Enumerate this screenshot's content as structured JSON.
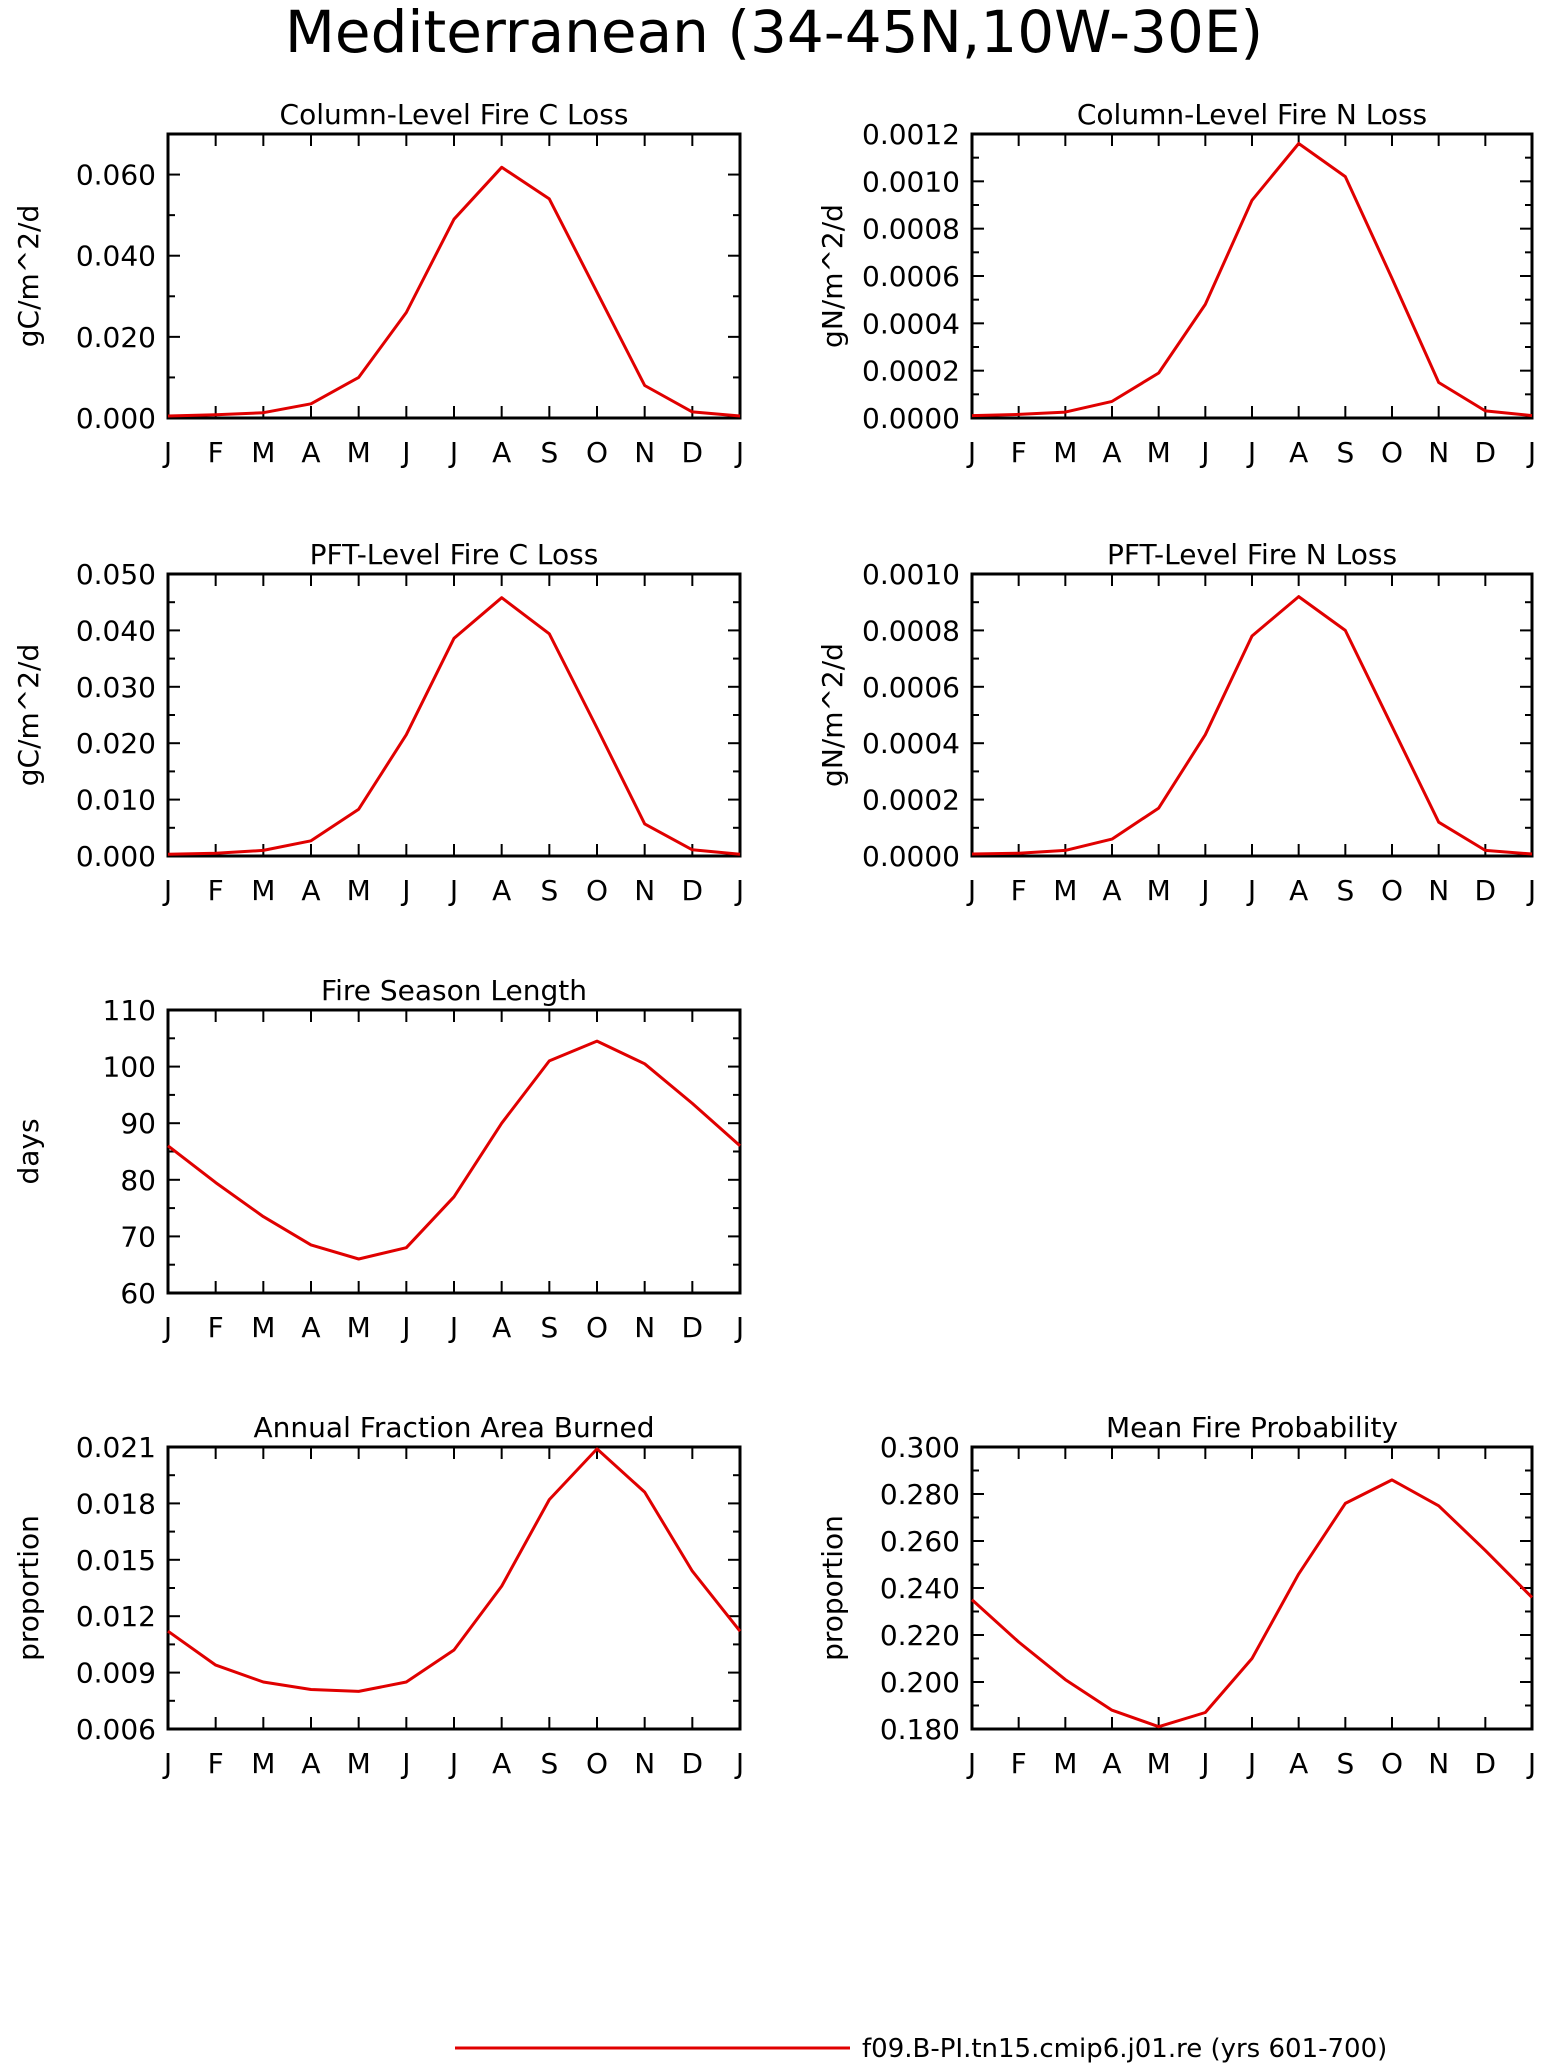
{
  "title": "Mediterranean (34-45N,10W-30E)",
  "legend": {
    "label": "f09.B-PI.tn15.cmip6.j01.re (yrs 601-700)",
    "color": "#e00000"
  },
  "chart_data": [
    {
      "type": "line",
      "title": "Column-Level Fire C Loss",
      "ylabel": "gC/m^2/d",
      "categories": [
        "J",
        "F",
        "M",
        "A",
        "M",
        "J",
        "J",
        "A",
        "S",
        "O",
        "N",
        "D",
        "J"
      ],
      "yticks": [
        "0.000",
        "0.020",
        "0.040",
        "0.060"
      ],
      "ylim": [
        0,
        0.07
      ],
      "series": [
        {
          "values": [
            0.0005,
            0.0008,
            0.0013,
            0.0035,
            0.01,
            0.026,
            0.049,
            0.0618,
            0.054,
            0.031,
            0.008,
            0.0015,
            0.0005
          ]
        }
      ]
    },
    {
      "type": "line",
      "title": "Column-Level Fire N Loss",
      "ylabel": "gN/m^2/d",
      "categories": [
        "J",
        "F",
        "M",
        "A",
        "M",
        "J",
        "J",
        "A",
        "S",
        "O",
        "N",
        "D",
        "J"
      ],
      "yticks": [
        "0.0000",
        "0.0002",
        "0.0004",
        "0.0006",
        "0.0008",
        "0.0010",
        "0.0012"
      ],
      "ylim": [
        0,
        0.0012
      ],
      "series": [
        {
          "values": [
            1e-05,
            1.5e-05,
            2.5e-05,
            7e-05,
            0.00019,
            0.00048,
            0.00092,
            0.00116,
            0.00102,
            0.00059,
            0.00015,
            3e-05,
            1e-05
          ]
        }
      ]
    },
    {
      "type": "line",
      "title": "PFT-Level Fire C Loss",
      "ylabel": "gC/m^2/d",
      "categories": [
        "J",
        "F",
        "M",
        "A",
        "M",
        "J",
        "J",
        "A",
        "S",
        "O",
        "N",
        "D",
        "J"
      ],
      "yticks": [
        "0.000",
        "0.010",
        "0.020",
        "0.030",
        "0.040",
        "0.050"
      ],
      "ylim": [
        0,
        0.05
      ],
      "series": [
        {
          "values": [
            0.0003,
            0.0005,
            0.001,
            0.0027,
            0.0083,
            0.0215,
            0.0386,
            0.0458,
            0.0394,
            0.0227,
            0.0057,
            0.0011,
            0.0003
          ]
        }
      ]
    },
    {
      "type": "line",
      "title": "PFT-Level Fire N Loss",
      "ylabel": "gN/m^2/d",
      "categories": [
        "J",
        "F",
        "M",
        "A",
        "M",
        "J",
        "J",
        "A",
        "S",
        "O",
        "N",
        "D",
        "J"
      ],
      "yticks": [
        "0.0000",
        "0.0002",
        "0.0004",
        "0.0006",
        "0.0008",
        "0.0010"
      ],
      "ylim": [
        0,
        0.001
      ],
      "series": [
        {
          "values": [
            7e-06,
            1e-05,
            2e-05,
            6e-05,
            0.00017,
            0.00043,
            0.00078,
            0.00092,
            0.0008,
            0.00046,
            0.00012,
            2e-05,
            7e-06
          ]
        }
      ]
    },
    {
      "type": "line",
      "title": "Fire Season Length",
      "ylabel": "days",
      "categories": [
        "J",
        "F",
        "M",
        "A",
        "M",
        "J",
        "J",
        "A",
        "S",
        "O",
        "N",
        "D",
        "J"
      ],
      "yticks": [
        "60",
        "70",
        "80",
        "90",
        "100",
        "110"
      ],
      "ylim": [
        60,
        110
      ],
      "series": [
        {
          "values": [
            86,
            79.5,
            73.5,
            68.5,
            66,
            68,
            77,
            90,
            101,
            104.5,
            100.5,
            93.5,
            86
          ]
        }
      ]
    },
    {
      "type": "line",
      "title": "Annual Fraction Area Burned",
      "ylabel": "proportion",
      "categories": [
        "J",
        "F",
        "M",
        "A",
        "M",
        "J",
        "J",
        "A",
        "S",
        "O",
        "N",
        "D",
        "J"
      ],
      "yticks": [
        "0.006",
        "0.009",
        "0.012",
        "0.015",
        "0.018",
        "0.021"
      ],
      "ylim": [
        0.006,
        0.021
      ],
      "series": [
        {
          "values": [
            0.0112,
            0.0094,
            0.0085,
            0.0081,
            0.008,
            0.0085,
            0.0102,
            0.0136,
            0.0182,
            0.0209,
            0.0186,
            0.0144,
            0.0112
          ]
        }
      ]
    },
    {
      "type": "line",
      "title": "Mean Fire Probability",
      "ylabel": "proportion",
      "categories": [
        "J",
        "F",
        "M",
        "A",
        "M",
        "J",
        "J",
        "A",
        "S",
        "O",
        "N",
        "D",
        "J"
      ],
      "yticks": [
        "0.180",
        "0.200",
        "0.220",
        "0.240",
        "0.260",
        "0.280",
        "0.300"
      ],
      "ylim": [
        0.18,
        0.3
      ],
      "series": [
        {
          "values": [
            0.235,
            0.217,
            0.201,
            0.188,
            0.181,
            0.187,
            0.21,
            0.246,
            0.276,
            0.286,
            0.275,
            0.256,
            0.236
          ]
        }
      ]
    }
  ]
}
